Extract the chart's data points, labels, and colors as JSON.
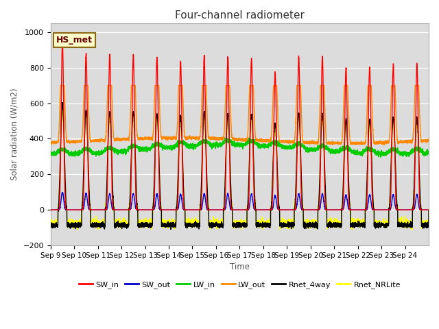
{
  "title": "Four-channel radiometer",
  "xlabel": "Time",
  "ylabel": "Solar radiation (W/m2)",
  "ylim": [
    -200,
    1050
  ],
  "yticks": [
    -200,
    0,
    200,
    400,
    600,
    800,
    1000
  ],
  "n_days": 16,
  "x_tick_labels": [
    "Sep 9",
    "Sep 10",
    "Sep 11",
    "Sep 12",
    "Sep 13",
    "Sep 14",
    "Sep 15",
    "Sep 16",
    "Sep 17",
    "Sep 18",
    "Sep 19",
    "Sep 20",
    "Sep 21",
    "Sep 22",
    "Sep 23",
    "Sep 24"
  ],
  "bg_color": "#dcdcdc",
  "annotation_text": "HS_met",
  "annotation_bg": "#ffffcc",
  "annotation_border": "#8b6914",
  "sw_peaks": [
    940,
    880,
    875,
    870,
    855,
    835,
    870,
    860,
    855,
    770,
    860,
    855,
    800,
    805,
    820,
    820
  ],
  "series_colors": [
    "#ff0000",
    "#0000cc",
    "#00cc00",
    "#ff8800",
    "#000000",
    "#ffff00"
  ],
  "series_names": [
    "SW_in",
    "SW_out",
    "LW_in",
    "LW_out",
    "Rnet_4way",
    "Rnet_NRLite"
  ],
  "series_lw": [
    1.0,
    1.0,
    1.0,
    1.0,
    1.0,
    1.0
  ]
}
